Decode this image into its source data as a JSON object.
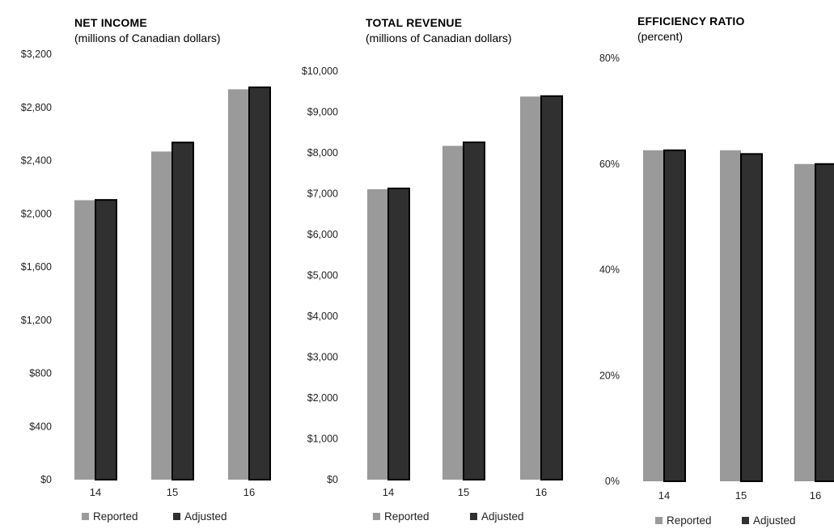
{
  "colors": {
    "reported": "#9a9a9a",
    "adjusted": "#303030",
    "adjusted_stroke": "#000000"
  },
  "chart_data": [
    {
      "type": "bar",
      "title": "NET INCOME",
      "subtitle": "(millions of Canadian dollars)",
      "categories": [
        "14",
        "15",
        "16"
      ],
      "series": [
        {
          "name": "Reported",
          "values": [
            2102,
            2468,
            2936
          ]
        },
        {
          "name": "Adjusted",
          "values": [
            2104,
            2536,
            2951
          ]
        }
      ],
      "ylim": [
        0,
        3200
      ],
      "yticks": [
        "$0",
        "$400",
        "$800",
        "$1,200",
        "$1,600",
        "$2,000",
        "$2,400",
        "$2,800",
        "$3,200"
      ],
      "xlabel": "",
      "ylabel": "",
      "grid": false,
      "legend": "bottom"
    },
    {
      "type": "bar",
      "title": "TOTAL REVENUE",
      "subtitle": "(millions of Canadian dollars)",
      "categories": [
        "14",
        "15",
        "16"
      ],
      "series": [
        {
          "name": "Reported",
          "values": [
            7109,
            8172,
            9379
          ]
        },
        {
          "name": "Adjusted",
          "values": [
            7130,
            8259,
            9390
          ]
        }
      ],
      "ylim": [
        0,
        10000
      ],
      "yticks": [
        "$0",
        "$1,000",
        "$2,000",
        "$3,000",
        "$4,000",
        "$5,000",
        "$6,000",
        "$7,000",
        "$8,000",
        "$9,000",
        "$10,000"
      ],
      "xlabel": "",
      "ylabel": "",
      "grid": false,
      "legend": "bottom"
    },
    {
      "type": "bar",
      "title": "EFFICIENCY RATIO",
      "subtitle": "(percent)",
      "categories": [
        "14",
        "15",
        "16"
      ],
      "series": [
        {
          "name": "Reported",
          "values": [
            62.6,
            62.6,
            60.0
          ]
        },
        {
          "name": "Adjusted",
          "values": [
            62.6,
            61.9,
            60.0
          ]
        }
      ],
      "ylim": [
        0,
        80
      ],
      "yticks": [
        "0%",
        "20%",
        "40%",
        "60%",
        "80%"
      ],
      "xlabel": "",
      "ylabel": "",
      "grid": false,
      "legend": "bottom"
    }
  ]
}
